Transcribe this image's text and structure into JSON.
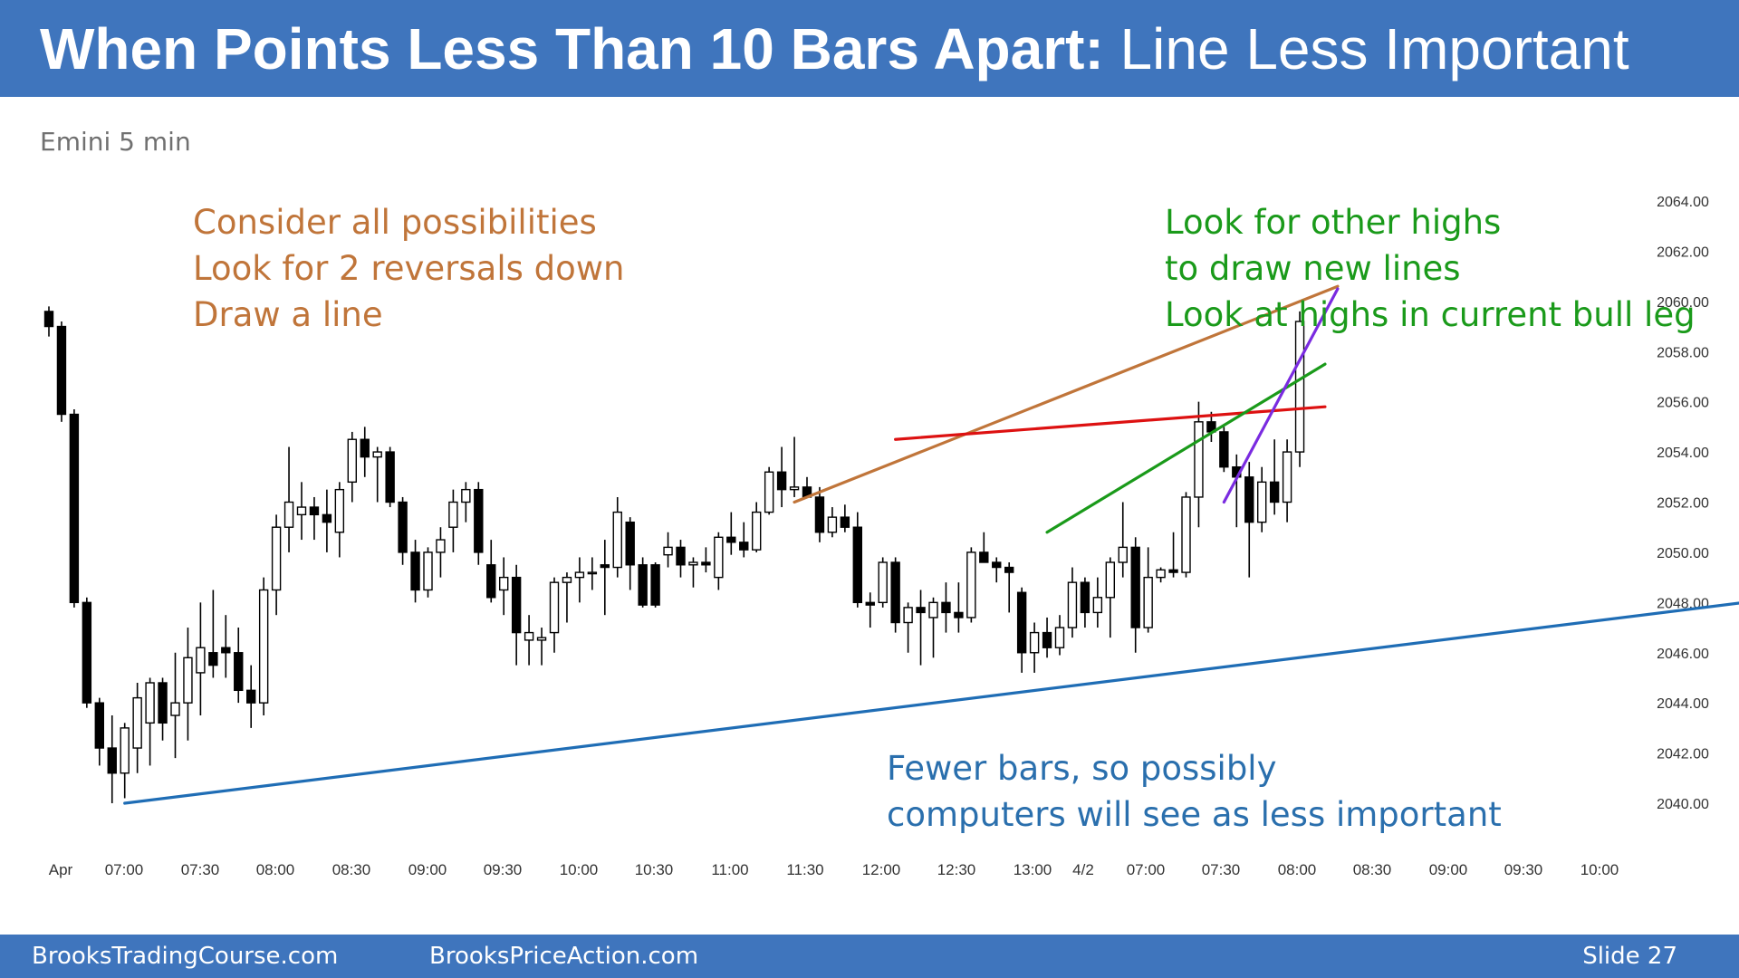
{
  "slide": {
    "title_bold": "When Points Less Than 10 Bars Apart:",
    "title_normal": " Line Less Important",
    "subtitle": "Emini 5 min",
    "annotations": {
      "orange": [
        "Consider all possibilities",
        "Look for 2 reversals down",
        "Draw a line"
      ],
      "green": [
        "Look for other highs",
        "to draw new lines",
        "Look at highs in current bull leg"
      ],
      "blue": [
        "Fewer bars, so possibly",
        "computers will see as less important"
      ]
    },
    "footer": {
      "left": "BrooksTradingCourse.com",
      "center": "BrooksPriceAction.com",
      "right": "Slide  27"
    }
  },
  "colors": {
    "header_bg": "#3f75bd",
    "orange_line": "#c0753a",
    "red_line": "#dd1111",
    "green_line": "#1a9a1a",
    "purple_line": "#7a2be0",
    "blue_line": "#1f6db5",
    "up_candle": "#ffffff",
    "down_candle": "#000000"
  },
  "chart_data": {
    "type": "candlestick",
    "ylim": [
      2039.0,
      2065.0
    ],
    "y_ticks": [
      "2064.00",
      "2062.00",
      "2060.00",
      "2058.00",
      "2056.00",
      "2054.00",
      "2052.00",
      "2050.00",
      "2048.00",
      "2046.00",
      "2044.00",
      "2042.00",
      "2040.00"
    ],
    "x_ticks": [
      "Apr",
      "07:00",
      "07:30",
      "08:00",
      "08:30",
      "09:00",
      "09:30",
      "10:00",
      "10:30",
      "11:00",
      "11:30",
      "12:00",
      "12:30",
      "13:00",
      "4/2",
      "07:00",
      "07:30",
      "08:00",
      "08:30",
      "09:00",
      "09:30",
      "10:00"
    ],
    "candles": [
      {
        "o": 2059.6,
        "h": 2059.8,
        "l": 2058.6,
        "c": 2059.0
      },
      {
        "o": 2059.0,
        "h": 2059.2,
        "l": 2055.2,
        "c": 2055.5
      },
      {
        "o": 2055.5,
        "h": 2055.7,
        "l": 2047.8,
        "c": 2048.0
      },
      {
        "o": 2048.0,
        "h": 2048.2,
        "l": 2043.8,
        "c": 2044.0
      },
      {
        "o": 2044.0,
        "h": 2044.2,
        "l": 2041.5,
        "c": 2042.2
      },
      {
        "o": 2042.2,
        "h": 2043.5,
        "l": 2040.0,
        "c": 2041.2
      },
      {
        "o": 2041.2,
        "h": 2043.2,
        "l": 2040.2,
        "c": 2043.0
      },
      {
        "o": 2042.2,
        "h": 2044.8,
        "l": 2041.2,
        "c": 2044.2
      },
      {
        "o": 2043.2,
        "h": 2045.0,
        "l": 2041.5,
        "c": 2044.8
      },
      {
        "o": 2044.8,
        "h": 2045.0,
        "l": 2042.5,
        "c": 2043.2
      },
      {
        "o": 2043.5,
        "h": 2046.0,
        "l": 2041.8,
        "c": 2044.0
      },
      {
        "o": 2044.0,
        "h": 2047.0,
        "l": 2042.5,
        "c": 2045.8
      },
      {
        "o": 2045.2,
        "h": 2048.0,
        "l": 2043.5,
        "c": 2046.2
      },
      {
        "o": 2046.0,
        "h": 2048.5,
        "l": 2045.0,
        "c": 2045.5
      },
      {
        "o": 2046.2,
        "h": 2047.5,
        "l": 2045.0,
        "c": 2046.0
      },
      {
        "o": 2046.0,
        "h": 2047.0,
        "l": 2044.0,
        "c": 2044.5
      },
      {
        "o": 2044.5,
        "h": 2045.5,
        "l": 2043.0,
        "c": 2044.0
      },
      {
        "o": 2044.0,
        "h": 2049.0,
        "l": 2043.5,
        "c": 2048.5
      },
      {
        "o": 2048.5,
        "h": 2051.5,
        "l": 2047.5,
        "c": 2051.0
      },
      {
        "o": 2051.0,
        "h": 2054.2,
        "l": 2050.0,
        "c": 2052.0
      },
      {
        "o": 2051.5,
        "h": 2052.8,
        "l": 2050.5,
        "c": 2051.8
      },
      {
        "o": 2051.8,
        "h": 2052.2,
        "l": 2050.5,
        "c": 2051.5
      },
      {
        "o": 2051.5,
        "h": 2052.5,
        "l": 2050.0,
        "c": 2051.2
      },
      {
        "o": 2050.8,
        "h": 2052.8,
        "l": 2049.8,
        "c": 2052.5
      },
      {
        "o": 2052.8,
        "h": 2054.8,
        "l": 2052.0,
        "c": 2054.5
      },
      {
        "o": 2054.5,
        "h": 2055.0,
        "l": 2053.0,
        "c": 2053.8
      },
      {
        "o": 2053.8,
        "h": 2054.2,
        "l": 2052.0,
        "c": 2054.0
      },
      {
        "o": 2054.0,
        "h": 2054.2,
        "l": 2051.8,
        "c": 2052.0
      },
      {
        "o": 2052.0,
        "h": 2052.2,
        "l": 2049.5,
        "c": 2050.0
      },
      {
        "o": 2050.0,
        "h": 2050.5,
        "l": 2048.0,
        "c": 2048.5
      },
      {
        "o": 2048.5,
        "h": 2050.2,
        "l": 2048.2,
        "c": 2050.0
      },
      {
        "o": 2050.0,
        "h": 2051.0,
        "l": 2049.0,
        "c": 2050.5
      },
      {
        "o": 2051.0,
        "h": 2052.5,
        "l": 2050.0,
        "c": 2052.0
      },
      {
        "o": 2052.0,
        "h": 2052.8,
        "l": 2051.2,
        "c": 2052.5
      },
      {
        "o": 2052.5,
        "h": 2052.8,
        "l": 2049.5,
        "c": 2050.0
      },
      {
        "o": 2049.5,
        "h": 2050.5,
        "l": 2048.0,
        "c": 2048.2
      },
      {
        "o": 2048.5,
        "h": 2049.8,
        "l": 2047.5,
        "c": 2049.0
      },
      {
        "o": 2049.0,
        "h": 2049.5,
        "l": 2045.5,
        "c": 2046.8
      },
      {
        "o": 2046.5,
        "h": 2047.5,
        "l": 2045.5,
        "c": 2046.8
      },
      {
        "o": 2046.5,
        "h": 2047.0,
        "l": 2045.5,
        "c": 2046.6
      },
      {
        "o": 2046.8,
        "h": 2049.0,
        "l": 2046.0,
        "c": 2048.8
      },
      {
        "o": 2048.8,
        "h": 2049.2,
        "l": 2047.2,
        "c": 2049.0
      },
      {
        "o": 2049.0,
        "h": 2049.8,
        "l": 2048.0,
        "c": 2049.2
      },
      {
        "o": 2049.2,
        "h": 2049.8,
        "l": 2048.5,
        "c": 2049.2
      },
      {
        "o": 2049.5,
        "h": 2050.5,
        "l": 2047.5,
        "c": 2049.4
      },
      {
        "o": 2049.4,
        "h": 2052.2,
        "l": 2049.0,
        "c": 2051.6
      },
      {
        "o": 2051.2,
        "h": 2051.4,
        "l": 2048.5,
        "c": 2049.5
      },
      {
        "o": 2049.5,
        "h": 2049.8,
        "l": 2047.8,
        "c": 2047.9
      },
      {
        "o": 2049.5,
        "h": 2049.6,
        "l": 2047.8,
        "c": 2047.9
      },
      {
        "o": 2049.9,
        "h": 2050.8,
        "l": 2049.4,
        "c": 2050.2
      },
      {
        "o": 2050.2,
        "h": 2050.5,
        "l": 2049.0,
        "c": 2049.5
      },
      {
        "o": 2049.5,
        "h": 2049.8,
        "l": 2048.6,
        "c": 2049.6
      },
      {
        "o": 2049.6,
        "h": 2050.2,
        "l": 2049.2,
        "c": 2049.5
      },
      {
        "o": 2049.0,
        "h": 2050.8,
        "l": 2048.5,
        "c": 2050.6
      },
      {
        "o": 2050.6,
        "h": 2051.6,
        "l": 2049.9,
        "c": 2050.4
      },
      {
        "o": 2050.4,
        "h": 2051.2,
        "l": 2049.8,
        "c": 2050.1
      },
      {
        "o": 2050.1,
        "h": 2052.0,
        "l": 2050.0,
        "c": 2051.6
      },
      {
        "o": 2051.6,
        "h": 2053.4,
        "l": 2051.5,
        "c": 2053.2
      },
      {
        "o": 2053.2,
        "h": 2054.2,
        "l": 2051.8,
        "c": 2052.5
      },
      {
        "o": 2052.5,
        "h": 2054.6,
        "l": 2052.2,
        "c": 2052.6
      },
      {
        "o": 2052.6,
        "h": 2053.0,
        "l": 2052.2,
        "c": 2052.2
      },
      {
        "o": 2052.2,
        "h": 2052.6,
        "l": 2050.4,
        "c": 2050.8
      },
      {
        "o": 2050.8,
        "h": 2051.8,
        "l": 2050.6,
        "c": 2051.4
      },
      {
        "o": 2051.4,
        "h": 2051.9,
        "l": 2050.8,
        "c": 2051.0
      },
      {
        "o": 2051.0,
        "h": 2051.6,
        "l": 2047.8,
        "c": 2048.0
      },
      {
        "o": 2048.0,
        "h": 2048.4,
        "l": 2047.0,
        "c": 2047.9
      },
      {
        "o": 2048.0,
        "h": 2049.8,
        "l": 2047.8,
        "c": 2049.6
      },
      {
        "o": 2049.6,
        "h": 2049.8,
        "l": 2046.8,
        "c": 2047.2
      },
      {
        "o": 2047.2,
        "h": 2048.0,
        "l": 2046.0,
        "c": 2047.8
      },
      {
        "o": 2047.8,
        "h": 2048.5,
        "l": 2045.5,
        "c": 2047.6
      },
      {
        "o": 2047.4,
        "h": 2048.2,
        "l": 2045.8,
        "c": 2048.0
      },
      {
        "o": 2048.0,
        "h": 2048.8,
        "l": 2046.8,
        "c": 2047.6
      },
      {
        "o": 2047.6,
        "h": 2048.8,
        "l": 2046.8,
        "c": 2047.4
      },
      {
        "o": 2047.4,
        "h": 2050.2,
        "l": 2047.2,
        "c": 2050.0
      },
      {
        "o": 2050.0,
        "h": 2050.8,
        "l": 2049.6,
        "c": 2049.6
      },
      {
        "o": 2049.6,
        "h": 2049.8,
        "l": 2048.8,
        "c": 2049.4
      },
      {
        "o": 2049.4,
        "h": 2049.6,
        "l": 2047.6,
        "c": 2049.2
      },
      {
        "o": 2048.4,
        "h": 2048.6,
        "l": 2045.2,
        "c": 2046.0
      },
      {
        "o": 2046.0,
        "h": 2047.2,
        "l": 2045.2,
        "c": 2046.8
      },
      {
        "o": 2046.8,
        "h": 2047.4,
        "l": 2045.8,
        "c": 2046.2
      },
      {
        "o": 2046.2,
        "h": 2047.5,
        "l": 2045.9,
        "c": 2047.0
      },
      {
        "o": 2047.0,
        "h": 2049.4,
        "l": 2046.6,
        "c": 2048.8
      },
      {
        "o": 2048.8,
        "h": 2049.0,
        "l": 2047.0,
        "c": 2047.6
      },
      {
        "o": 2047.6,
        "h": 2049.0,
        "l": 2047.0,
        "c": 2048.2
      },
      {
        "o": 2048.2,
        "h": 2049.8,
        "l": 2046.6,
        "c": 2049.6
      },
      {
        "o": 2049.6,
        "h": 2052.0,
        "l": 2049.0,
        "c": 2050.2
      },
      {
        "o": 2050.2,
        "h": 2050.6,
        "l": 2046.0,
        "c": 2047.0
      },
      {
        "o": 2047.0,
        "h": 2050.2,
        "l": 2046.8,
        "c": 2049.0
      },
      {
        "o": 2049.0,
        "h": 2049.4,
        "l": 2048.8,
        "c": 2049.3
      },
      {
        "o": 2049.3,
        "h": 2050.8,
        "l": 2049.0,
        "c": 2049.2
      },
      {
        "o": 2049.2,
        "h": 2052.4,
        "l": 2049.0,
        "c": 2052.2
      },
      {
        "o": 2052.2,
        "h": 2056.0,
        "l": 2051.0,
        "c": 2055.2
      },
      {
        "o": 2055.2,
        "h": 2055.6,
        "l": 2054.4,
        "c": 2054.8
      },
      {
        "o": 2054.8,
        "h": 2055.0,
        "l": 2053.2,
        "c": 2053.4
      },
      {
        "o": 2053.4,
        "h": 2053.9,
        "l": 2051.0,
        "c": 2053.0
      },
      {
        "o": 2053.0,
        "h": 2053.6,
        "l": 2049.0,
        "c": 2051.2
      },
      {
        "o": 2051.2,
        "h": 2053.4,
        "l": 2050.8,
        "c": 2052.8
      },
      {
        "o": 2052.8,
        "h": 2054.5,
        "l": 2051.5,
        "c": 2052.0
      },
      {
        "o": 2052.0,
        "h": 2054.5,
        "l": 2051.2,
        "c": 2054.0
      },
      {
        "o": 2054.0,
        "h": 2059.6,
        "l": 2053.4,
        "c": 2059.2
      }
    ],
    "lines": [
      {
        "name": "orange-trend-line",
        "color_key": "orange_line",
        "from": [
          59,
          2052.0
        ],
        "to": [
          102,
          2060.6
        ]
      },
      {
        "name": "red-trend-line",
        "color_key": "red_line",
        "from": [
          67,
          2054.5
        ],
        "to": [
          101,
          2055.8
        ]
      },
      {
        "name": "green-trend-line",
        "color_key": "green_line",
        "from": [
          79,
          2050.8
        ],
        "to": [
          101,
          2057.5
        ]
      },
      {
        "name": "purple-trend-line",
        "color_key": "purple_line",
        "from": [
          93,
          2052.0
        ],
        "to": [
          102,
          2060.5
        ]
      },
      {
        "name": "blue-trend-line",
        "color_key": "blue_line",
        "from": [
          6,
          2040.0
        ],
        "to": [
          155,
          2049.3
        ]
      }
    ]
  }
}
